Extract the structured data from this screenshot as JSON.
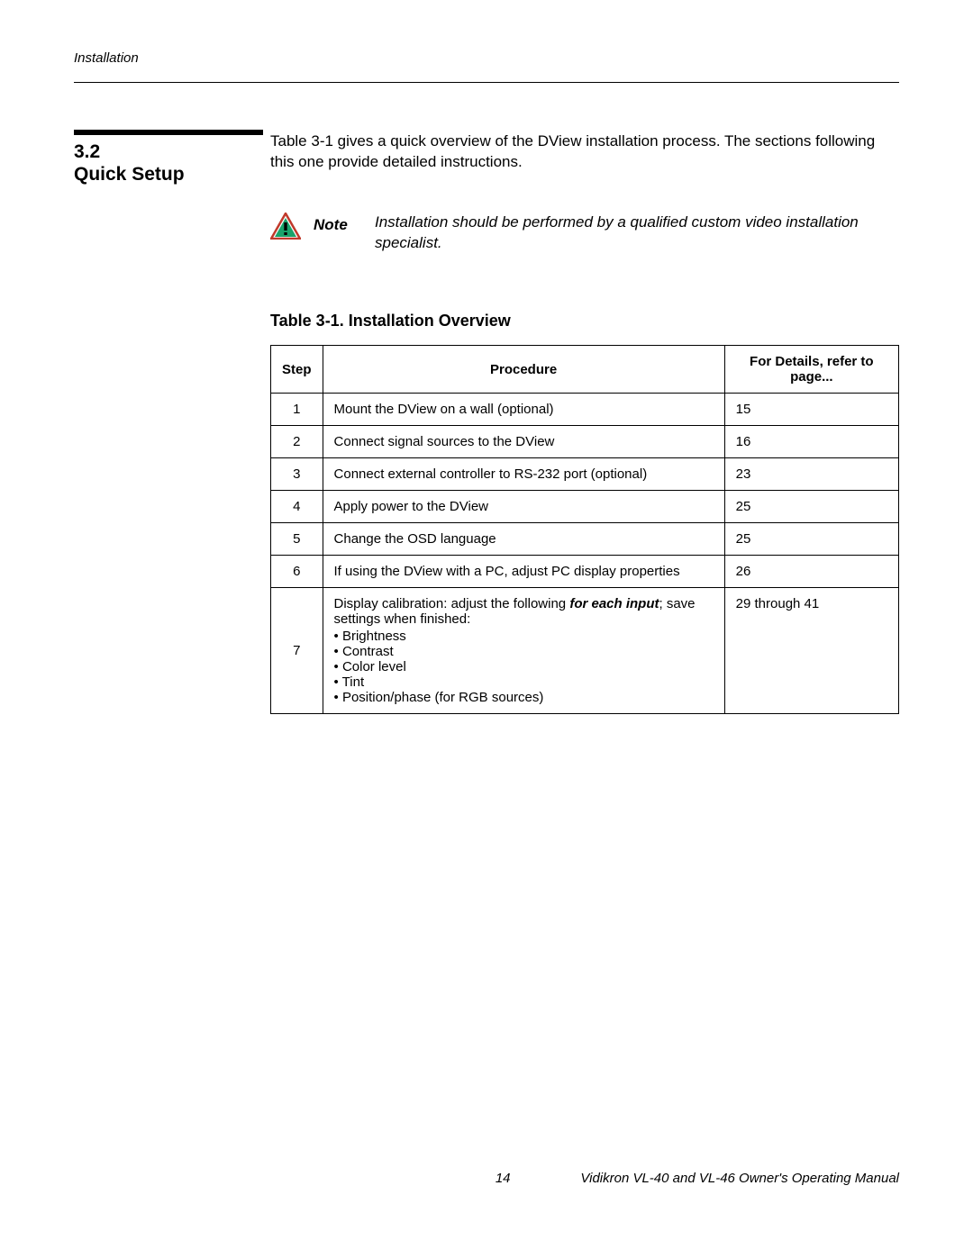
{
  "running_head": "Installation",
  "section": {
    "number": "3.2",
    "title": "Quick Setup"
  },
  "intro": "Table 3-1 gives a quick overview of the DView installation process. The sections following this one provide detailed instructions.",
  "note": {
    "label": "Note",
    "text": "Installation should be performed by a qualified custom video installation specialist.",
    "icon_colors": {
      "triangle_stroke": "#c0392b",
      "triangle_fill": "#ffffff",
      "inner_fill": "#1aa36b",
      "bang": "#000000"
    }
  },
  "table": {
    "caption": "Table 3-1. Installation Overview",
    "columns": [
      "Step",
      "Procedure",
      "For Details, refer to page..."
    ],
    "rows": [
      {
        "step": "1",
        "procedure": "Mount the DView on a wall (optional)",
        "page": "15"
      },
      {
        "step": "2",
        "procedure": "Connect signal sources to the DView",
        "page": "16"
      },
      {
        "step": "3",
        "procedure": "Connect external controller to RS-232 port (optional)",
        "page": "23"
      },
      {
        "step": "4",
        "procedure": "Apply power to the DView",
        "page": "25"
      },
      {
        "step": "5",
        "procedure": "Change the OSD language",
        "page": "25"
      },
      {
        "step": "6",
        "procedure": "If using the DView with a PC, adjust PC display properties",
        "page": "26"
      },
      {
        "step": "7",
        "procedure_lead": "Display calibration: adjust the following ",
        "procedure_bold": "for each input",
        "procedure_tail": "; save settings when finished:",
        "bullets": [
          "Brightness",
          "Contrast",
          "Color level",
          "Tint",
          "Position/phase (for RGB sources)"
        ],
        "page": "29 through 41"
      }
    ]
  },
  "footer": {
    "page_number": "14",
    "manual_title": "Vidikron VL-40 and VL-46 Owner's Operating Manual"
  }
}
